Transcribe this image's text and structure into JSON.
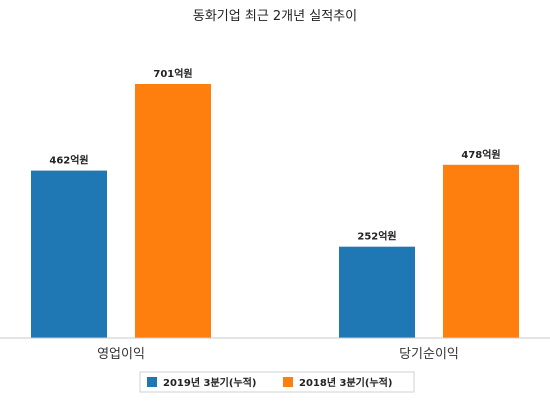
{
  "chart_data": {
    "type": "bar",
    "title": "동화기업 최근 2개년 실적추이",
    "xlabel": "",
    "ylabel": "",
    "categories": [
      "영업이익",
      "당기순이익"
    ],
    "series": [
      {
        "name": "2019년 3분기(누적)",
        "values": [
          462,
          252
        ],
        "labels": [
          "462억원",
          "252억원"
        ],
        "color": "#1f77b4"
      },
      {
        "name": "2018년 3분기(누적)",
        "values": [
          701,
          478
        ],
        "labels": [
          "701억원",
          "478억원"
        ],
        "color": "#ff7f0e"
      }
    ],
    "ylim": [
      0,
      850
    ],
    "grid": false,
    "legend_position": "bottom"
  }
}
